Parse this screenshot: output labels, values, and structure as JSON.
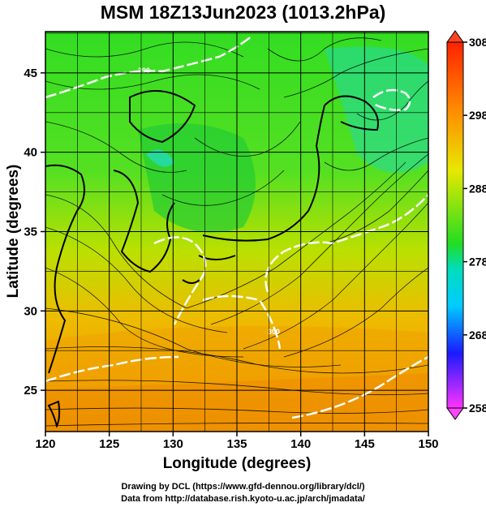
{
  "title": "MSM 18Z13Jun2023 (1013.2hPa)",
  "chart_data": {
    "type": "map",
    "variable": "temperature with streamlines",
    "xlabel": "Longitude (degrees)",
    "ylabel": "Latitude  (degrees)",
    "xlim": [
      120,
      150
    ],
    "ylim": [
      22.4,
      47.6
    ],
    "x_ticks": [
      120,
      125,
      130,
      135,
      140,
      145,
      150
    ],
    "y_ticks": [
      25,
      30,
      35,
      40,
      45
    ],
    "grid": true,
    "colorbar": {
      "min": 258,
      "max": 308,
      "ticks": [
        308,
        298,
        288,
        278,
        268,
        258
      ],
      "colors": [
        "#ff33ff",
        "#1a1aff",
        "#00ccff",
        "#22dd22",
        "#e8e800",
        "#ff8800",
        "#ff2200"
      ]
    },
    "contour_labels": [
      "290",
      "300"
    ]
  },
  "credits": {
    "line1": "Drawing by DCL (https://www.gfd-dennou.org/library/dcl/)",
    "line2": "Data from http://database.rish.kyoto-u.ac.jp/arch/jmadata/"
  }
}
